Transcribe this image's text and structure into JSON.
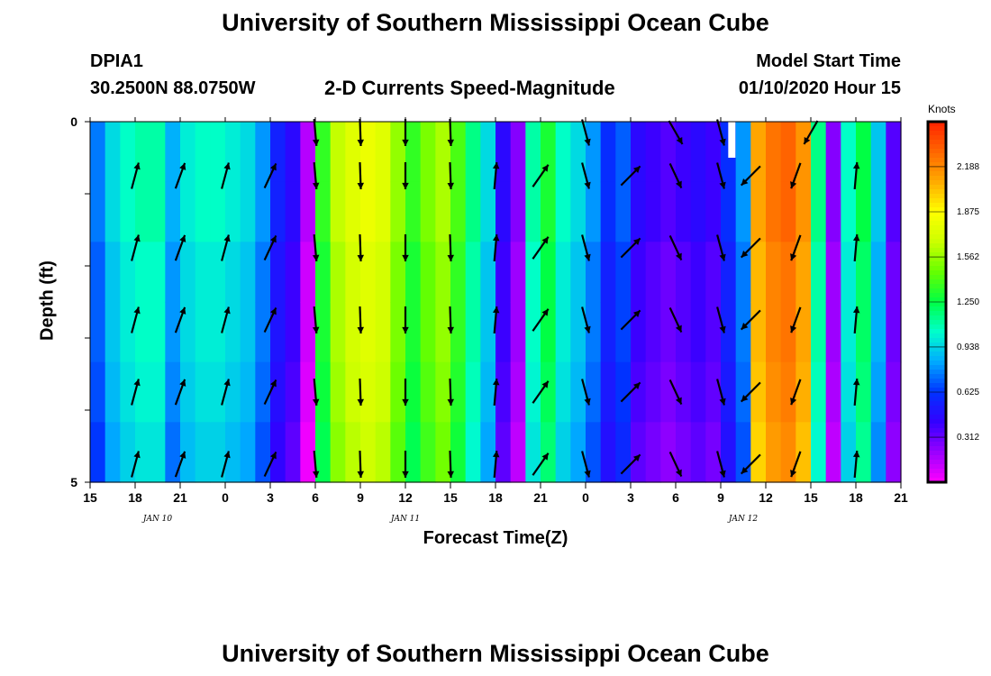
{
  "page": {
    "title_top": "University of Southern Mississippi Ocean Cube",
    "title_bottom": "University of Southern Mississippi Ocean Cube",
    "station": "DPIA1",
    "coordinates": "30.2500N 88.0750W",
    "plot_title": "2-D Currents Speed-Magnitude",
    "model_start_label": "Model Start Time",
    "model_start_value": "01/10/2020 Hour 15"
  },
  "chart_data": {
    "type": "heatmap",
    "title": "2-D Currents Speed-Magnitude",
    "xlabel": "Forecast Time(Z)",
    "ylabel": "Depth (ft)",
    "x_tick_labels": [
      "15",
      "18",
      "21",
      "0",
      "3",
      "6",
      "9",
      "12",
      "15",
      "18",
      "21",
      "0",
      "3",
      "6",
      "9",
      "12",
      "15",
      "18",
      "21"
    ],
    "x_date_labels": [
      {
        "text": "JAN  10",
        "at_tick": 1.5
      },
      {
        "text": "JAN  11",
        "at_tick": 7
      },
      {
        "text": "JAN  12",
        "at_tick": 14.5
      }
    ],
    "x_range_hours": [
      0,
      54
    ],
    "y_tick_labels": [
      "0",
      "5"
    ],
    "ylim": [
      0,
      5
    ],
    "colorbar": {
      "label": "Knots",
      "tick_labels": [
        "2.188",
        "1.875",
        "1.562",
        "1.250",
        "0.938",
        "0.625",
        "0.312"
      ],
      "tick_values": [
        2.188,
        1.875,
        1.562,
        1.25,
        0.938,
        0.625,
        0.312
      ],
      "range": [
        0,
        2.5
      ]
    },
    "time_hours": [
      0,
      1,
      2,
      3,
      4,
      5,
      6,
      7,
      8,
      9,
      10,
      11,
      12,
      13,
      14,
      15,
      16,
      17,
      18,
      19,
      20,
      21,
      22,
      23,
      24,
      25,
      26,
      27,
      28,
      29,
      30,
      31,
      32,
      33,
      34,
      35,
      36,
      37,
      38,
      39,
      40,
      41,
      42,
      43,
      44,
      45,
      46,
      47,
      48,
      49,
      50,
      51,
      52,
      53
    ],
    "speed_knots": [
      0.75,
      0.95,
      1.05,
      1.1,
      1.1,
      0.85,
      1.0,
      1.05,
      1.05,
      1.0,
      0.95,
      0.8,
      0.55,
      0.45,
      0.15,
      1.35,
      1.65,
      1.75,
      1.8,
      1.75,
      1.55,
      1.35,
      1.5,
      1.6,
      1.4,
      1.15,
      0.95,
      0.45,
      0.25,
      1.1,
      1.3,
      1.05,
      0.95,
      0.8,
      0.6,
      0.7,
      0.45,
      0.4,
      0.35,
      0.4,
      0.45,
      0.4,
      0.6,
      0.8,
      2.1,
      2.25,
      2.3,
      2.15,
      1.15,
      0.25,
      1.05,
      1.25,
      0.9,
      0.35
    ],
    "depth_speed_offsets": [
      0.0,
      0.0,
      0.05,
      0.05,
      0.08,
      0.12
    ],
    "arrow_depth_ft": [
      0.75,
      1.75,
      2.75,
      3.75,
      4.75
    ],
    "arrows": [
      {
        "hour": 3,
        "dir_deg": 15
      },
      {
        "hour": 6,
        "dir_deg": 20
      },
      {
        "hour": 9,
        "dir_deg": 15
      },
      {
        "hour": 12,
        "dir_deg": 25
      },
      {
        "hour": 15,
        "dir_deg": 175
      },
      {
        "hour": 18,
        "dir_deg": 178
      },
      {
        "hour": 21,
        "dir_deg": 180
      },
      {
        "hour": 24,
        "dir_deg": 178
      },
      {
        "hour": 27,
        "dir_deg": 5
      },
      {
        "hour": 30,
        "dir_deg": 35
      },
      {
        "hour": 33,
        "dir_deg": 165
      },
      {
        "hour": 36,
        "dir_deg": 45
      },
      {
        "hour": 39,
        "dir_deg": 155
      },
      {
        "hour": 42,
        "dir_deg": 165
      },
      {
        "hour": 44,
        "dir_deg": 225
      },
      {
        "hour": 47,
        "dir_deg": 200
      },
      {
        "hour": 51,
        "dir_deg": 5
      }
    ],
    "top_row_arrows": [
      {
        "hour": 15,
        "dir_deg": 175
      },
      {
        "hour": 18,
        "dir_deg": 178
      },
      {
        "hour": 21,
        "dir_deg": 180
      },
      {
        "hour": 24,
        "dir_deg": 178
      },
      {
        "hour": 33,
        "dir_deg": 165
      },
      {
        "hour": 39,
        "dir_deg": 150
      },
      {
        "hour": 42,
        "dir_deg": 165
      },
      {
        "hour": 48,
        "dir_deg": 210
      }
    ],
    "colors": {
      "scale": [
        "#ff00ff",
        "#9900ff",
        "#3300ff",
        "#0033ff",
        "#00aaff",
        "#00ffcc",
        "#00ff44",
        "#66ff00",
        "#ccff00",
        "#ffff00",
        "#ffaa00",
        "#ff6600",
        "#ff2200"
      ]
    }
  }
}
